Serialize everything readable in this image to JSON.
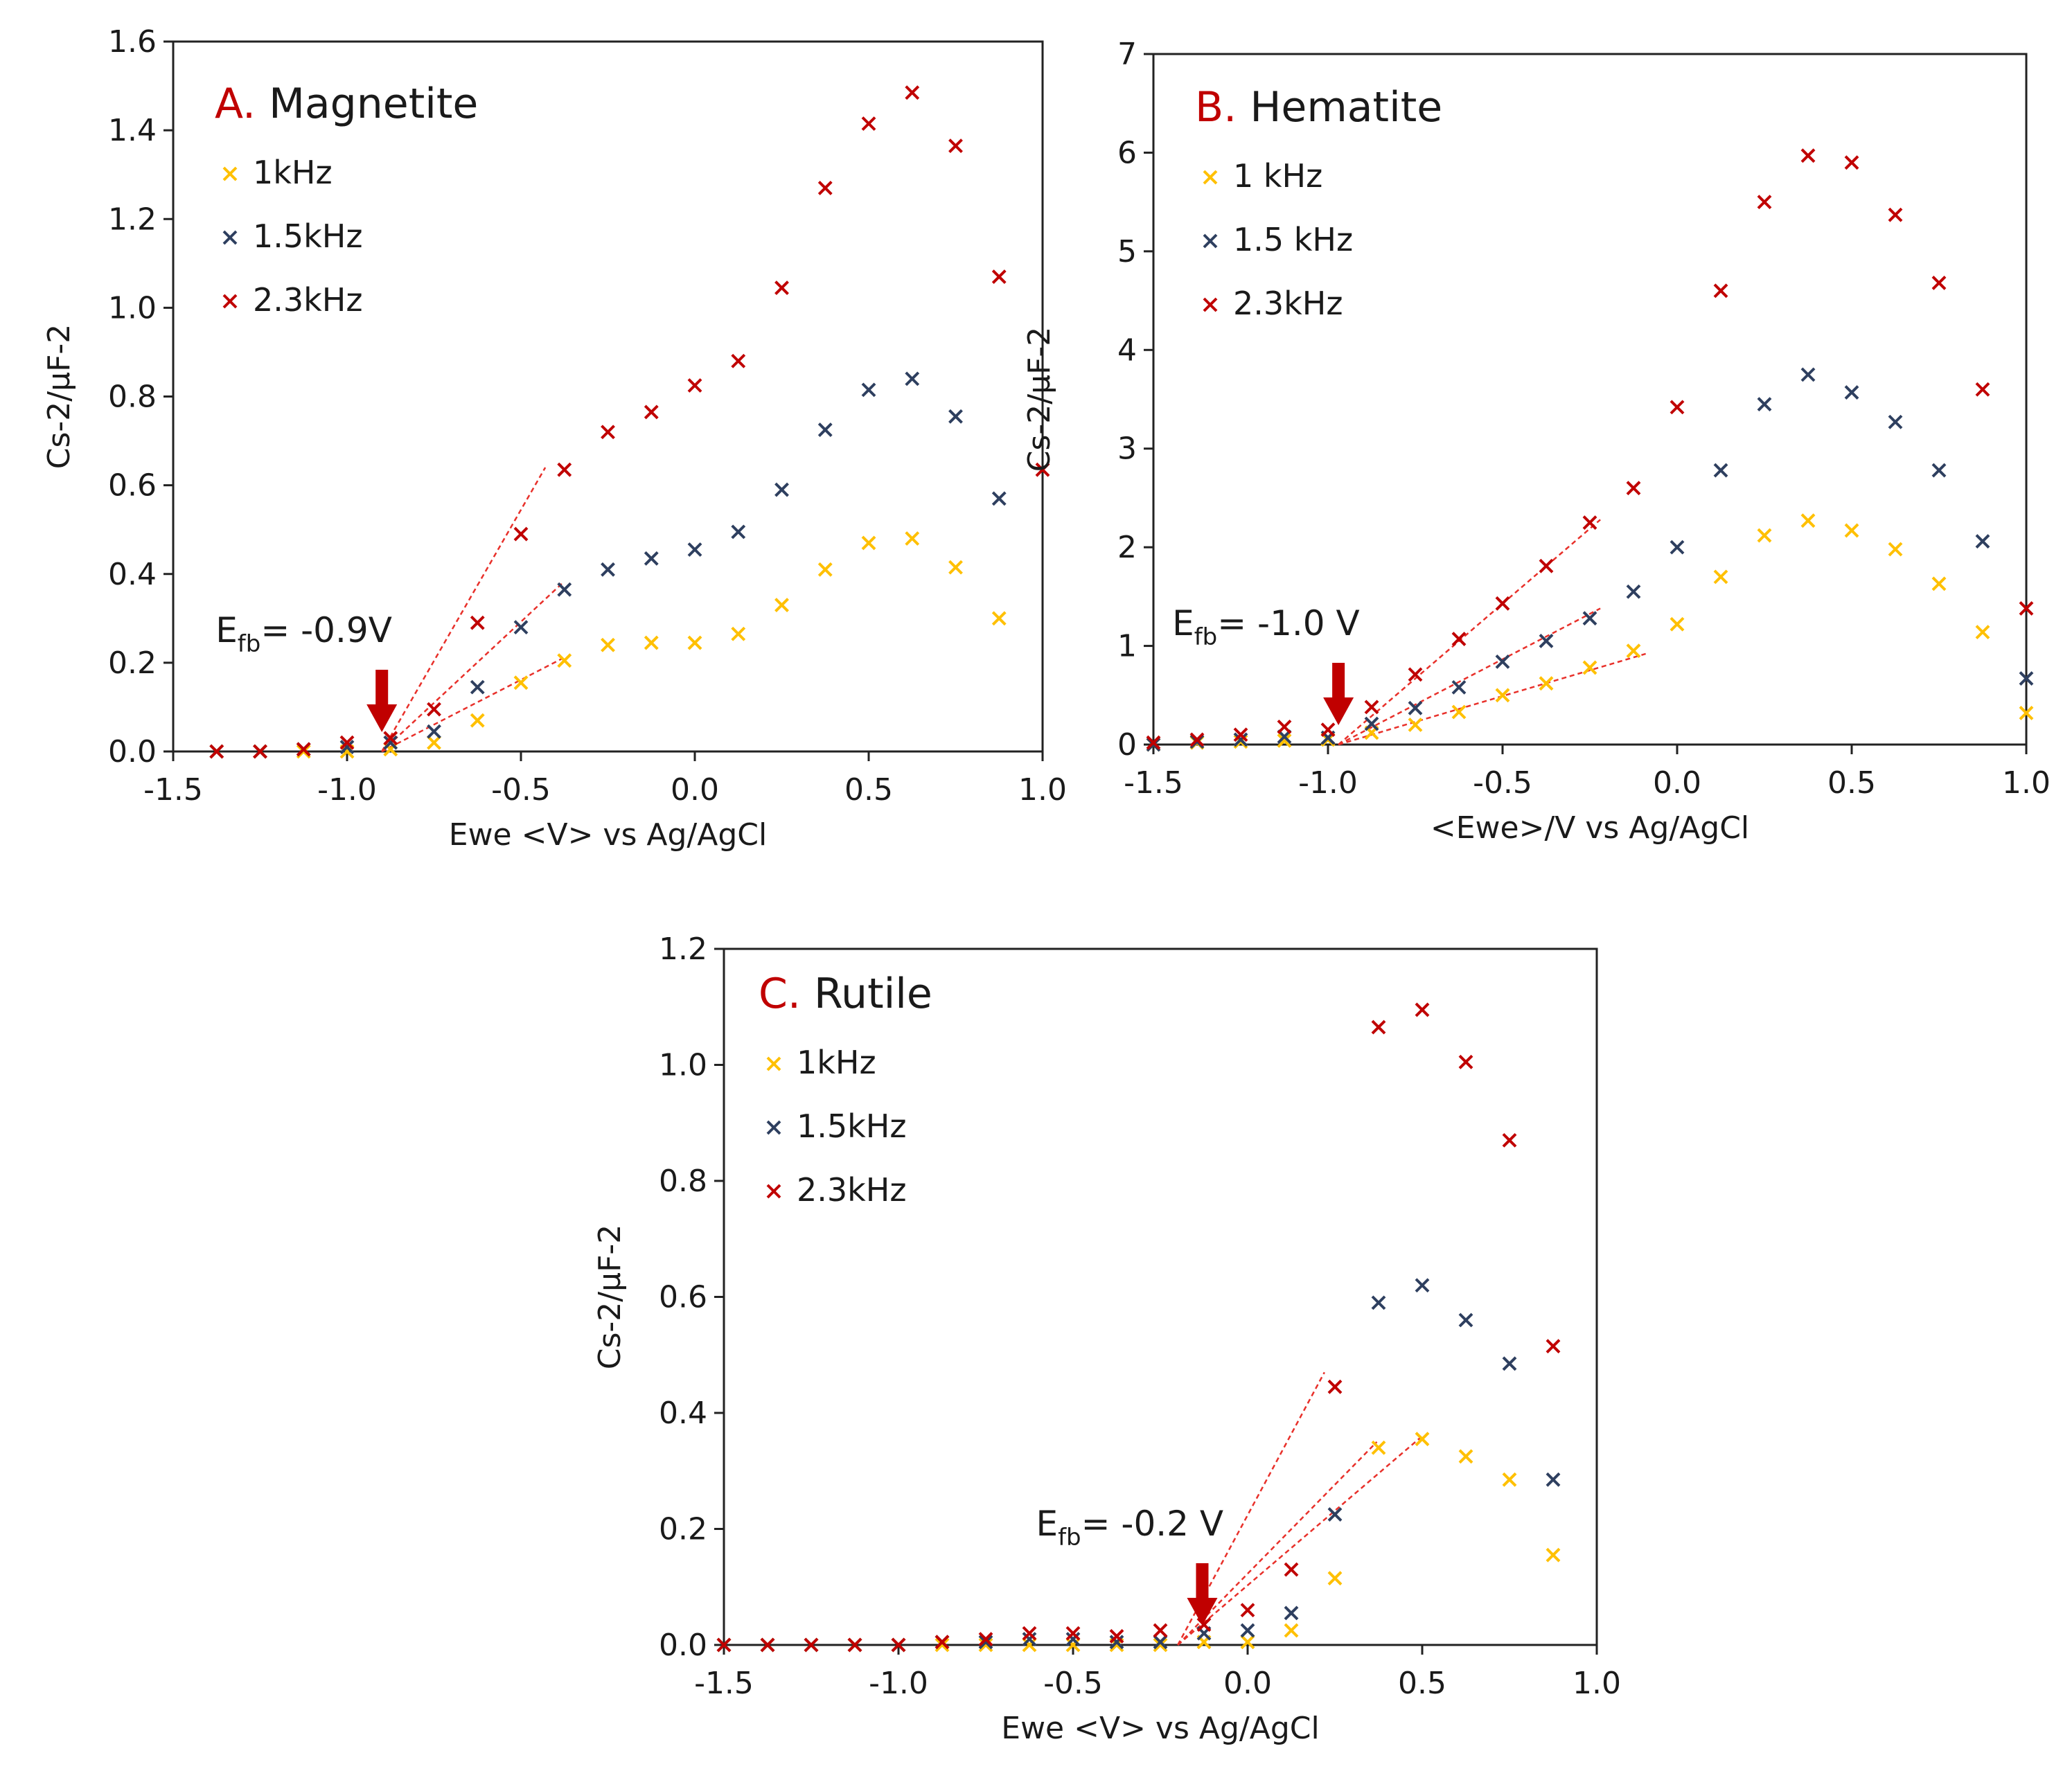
{
  "colors": {
    "s1": "#ffc000",
    "s2": "#2e3f5f",
    "s3": "#c00000",
    "arrow": "#c00000",
    "fit": "#e8302a",
    "axis": "#222222"
  },
  "chart_data": [
    {
      "type": "scatter",
      "panel_letter": "A.",
      "panel_name": "Magnetite",
      "xlabel": "Ewe <V> vs Ag/AgCl",
      "ylabel": "Cs-2/µF-2",
      "xlim": [
        -1.5,
        1.0
      ],
      "ylim": [
        0,
        1.6
      ],
      "xticks": [
        -1.5,
        -1.0,
        -0.5,
        0.0,
        0.5,
        1.0
      ],
      "xtick_labels": [
        "-1.5",
        "-1.0",
        "-0.5",
        "0.0",
        "0.5",
        "1.0"
      ],
      "yticks": [
        0,
        0.2,
        0.4,
        0.6,
        0.8,
        1.0,
        1.2,
        1.4,
        1.6
      ],
      "ytick_labels": [
        "0.0",
        "0.2",
        "0.4",
        "0.6",
        "0.8",
        "1.0",
        "1.2",
        "1.4",
        "1.6"
      ],
      "legend_position": "top-left",
      "annotation": {
        "efb_prefix": "E",
        "efb_sub": "fb",
        "efb_value": "= -0.9V",
        "arrow_x": -0.9
      },
      "series": [
        {
          "name": "1kHz",
          "x": [
            -1.375,
            -1.25,
            -1.125,
            -1.0,
            -0.875,
            -0.75,
            -0.625,
            -0.5,
            -0.375,
            -0.25,
            -0.125,
            0.0,
            0.125,
            0.25,
            0.375,
            0.5,
            0.625,
            0.75,
            0.875
          ],
          "y": [
            0,
            0,
            0,
            0,
            0.005,
            0.02,
            0.07,
            0.155,
            0.205,
            0.24,
            0.245,
            0.245,
            0.265,
            0.33,
            0.41,
            0.47,
            0.48,
            0.415,
            0.3
          ]
        },
        {
          "name": "1.5kHz",
          "x": [
            -1.375,
            -1.25,
            -1.125,
            -1.0,
            -0.875,
            -0.75,
            -0.625,
            -0.5,
            -0.375,
            -0.25,
            -0.125,
            0.0,
            0.125,
            0.25,
            0.375,
            0.5,
            0.625,
            0.75,
            0.875
          ],
          "y": [
            0,
            0,
            0.005,
            0.01,
            0.02,
            0.045,
            0.145,
            0.28,
            0.365,
            0.41,
            0.435,
            0.455,
            0.495,
            0.59,
            0.725,
            0.815,
            0.84,
            0.755,
            0.57
          ]
        },
        {
          "name": "2.3kHz",
          "x": [
            -1.375,
            -1.25,
            -1.125,
            -1.0,
            -0.875,
            -0.75,
            -0.625,
            -0.5,
            -0.375,
            -0.25,
            -0.125,
            0.0,
            0.125,
            0.25,
            0.375,
            0.5,
            0.625,
            0.75,
            0.875,
            1.0
          ],
          "y": [
            0,
            0,
            0.005,
            0.02,
            0.03,
            0.095,
            0.29,
            0.49,
            0.635,
            0.72,
            0.765,
            0.825,
            0.88,
            1.045,
            1.27,
            1.415,
            1.485,
            1.365,
            1.07,
            0.635
          ]
        }
      ],
      "fit_lines": [
        {
          "x": [
            -0.9,
            -0.38
          ],
          "y": [
            0.0,
            0.21
          ]
        },
        {
          "x": [
            -0.9,
            -0.38
          ],
          "y": [
            0.0,
            0.38
          ]
        },
        {
          "x": [
            -0.9,
            -0.43
          ],
          "y": [
            0.0,
            0.64
          ]
        }
      ]
    },
    {
      "type": "scatter",
      "panel_letter": "B.",
      "panel_name": "Hematite",
      "xlabel": "<Ewe>/V vs Ag/AgCl",
      "ylabel": "Cs-2/µF-2",
      "xlim": [
        -1.5,
        1.0
      ],
      "ylim": [
        0,
        7
      ],
      "xticks": [
        -1.5,
        -1.0,
        -0.5,
        0.0,
        0.5,
        1.0
      ],
      "xtick_labels": [
        "-1.5",
        "-1.0",
        "-0.5",
        "0.0",
        "0.5",
        "1.0"
      ],
      "yticks": [
        0,
        1,
        2,
        3,
        4,
        5,
        6,
        7
      ],
      "ytick_labels": [
        "0",
        "1",
        "2",
        "3",
        "4",
        "5",
        "6",
        "7"
      ],
      "legend_position": "top-left",
      "annotation": {
        "efb_prefix": "E",
        "efb_sub": "fb",
        "efb_value": "= -1.0 V",
        "arrow_x": -0.97
      },
      "series": [
        {
          "name": "1 kHz",
          "x": [
            -1.5,
            -1.375,
            -1.25,
            -1.125,
            -1.0,
            -0.875,
            -0.75,
            -0.625,
            -0.5,
            -0.375,
            -0.25,
            -0.125,
            0.0,
            0.125,
            0.25,
            0.375,
            0.5,
            0.625,
            0.75,
            0.875,
            1.0
          ],
          "y": [
            0,
            0.02,
            0.03,
            0.04,
            0.05,
            0.12,
            0.2,
            0.33,
            0.5,
            0.62,
            0.78,
            0.95,
            1.22,
            1.7,
            2.12,
            2.27,
            2.17,
            1.98,
            1.63,
            1.14,
            0.32
          ]
        },
        {
          "name": "1.5 kHz",
          "x": [
            -1.5,
            -1.375,
            -1.25,
            -1.125,
            -1.0,
            -0.875,
            -0.75,
            -0.625,
            -0.5,
            -0.375,
            -0.25,
            -0.125,
            0.0,
            0.125,
            0.25,
            0.375,
            0.5,
            0.625,
            0.75,
            0.875,
            1.0
          ],
          "y": [
            0,
            0.03,
            0.05,
            0.08,
            0.07,
            0.21,
            0.37,
            0.58,
            0.84,
            1.05,
            1.28,
            1.55,
            2.0,
            2.78,
            3.45,
            3.75,
            3.57,
            3.27,
            2.78,
            2.06,
            0.67
          ]
        },
        {
          "name": "2.3kHz",
          "x": [
            -1.5,
            -1.375,
            -1.25,
            -1.125,
            -1.0,
            -0.875,
            -0.75,
            -0.625,
            -0.5,
            -0.375,
            -0.25,
            -0.125,
            0.0,
            0.125,
            0.25,
            0.375,
            0.5,
            0.625,
            0.75,
            0.875,
            1.0
          ],
          "y": [
            0.02,
            0.05,
            0.1,
            0.18,
            0.15,
            0.38,
            0.71,
            1.07,
            1.43,
            1.81,
            2.25,
            2.6,
            3.42,
            4.6,
            5.5,
            5.97,
            5.9,
            5.37,
            4.68,
            3.6,
            1.38
          ]
        }
      ],
      "fit_lines": [
        {
          "x": [
            -0.97,
            -0.09
          ],
          "y": [
            0.0,
            0.92
          ]
        },
        {
          "x": [
            -0.97,
            -0.22
          ],
          "y": [
            0.0,
            1.38
          ]
        },
        {
          "x": [
            -0.97,
            -0.22
          ],
          "y": [
            0.0,
            2.28
          ]
        }
      ]
    },
    {
      "type": "scatter",
      "panel_letter": "C.",
      "panel_name": "Rutile",
      "xlabel": "Ewe <V> vs Ag/AgCl",
      "ylabel": "Cs-2/µF-2",
      "xlim": [
        -1.5,
        1.0
      ],
      "ylim": [
        0,
        1.2
      ],
      "xticks": [
        -1.5,
        -1.0,
        -0.5,
        0.0,
        0.5,
        1.0
      ],
      "xtick_labels": [
        "-1.5",
        "-1.0",
        "-0.5",
        "0.0",
        "0.5",
        "1.0"
      ],
      "yticks": [
        0,
        0.2,
        0.4,
        0.6,
        0.8,
        1.0,
        1.2
      ],
      "ytick_labels": [
        "0.0",
        "0.2",
        "0.4",
        "0.6",
        "0.8",
        "1.0",
        "1.2"
      ],
      "legend_position": "top-left",
      "annotation": {
        "efb_prefix": "E",
        "efb_sub": "fb",
        "efb_value": "= -0.2 V",
        "arrow_x": -0.13
      },
      "series": [
        {
          "name": "1kHz",
          "x": [
            -1.5,
            -1.375,
            -1.25,
            -1.125,
            -1.0,
            -0.875,
            -0.75,
            -0.625,
            -0.5,
            -0.375,
            -0.25,
            -0.125,
            0.0,
            0.125,
            0.25,
            0.375,
            0.5,
            0.625,
            0.75,
            0.875
          ],
          "y": [
            0,
            0,
            0,
            0,
            0,
            0,
            0,
            0,
            0,
            0,
            0,
            0.005,
            0.005,
            0.025,
            0.115,
            0.34,
            0.355,
            0.325,
            0.285,
            0.155
          ]
        },
        {
          "name": "1.5kHz",
          "x": [
            -1.5,
            -1.375,
            -1.25,
            -1.125,
            -1.0,
            -0.875,
            -0.75,
            -0.625,
            -0.5,
            -0.375,
            -0.25,
            -0.125,
            0.0,
            0.125,
            0.25,
            0.375,
            0.5,
            0.625,
            0.75,
            0.875
          ],
          "y": [
            0,
            0,
            0,
            0,
            0,
            0.005,
            0.005,
            0.01,
            0.01,
            0.005,
            0.005,
            0.02,
            0.025,
            0.055,
            0.225,
            0.59,
            0.62,
            0.56,
            0.485,
            0.285
          ]
        },
        {
          "name": "2.3kHz",
          "x": [
            -1.5,
            -1.375,
            -1.25,
            -1.125,
            -1.0,
            -0.875,
            -0.75,
            -0.625,
            -0.5,
            -0.375,
            -0.25,
            -0.125,
            0.0,
            0.125,
            0.25,
            0.375,
            0.5,
            0.625,
            0.75,
            0.875
          ],
          "y": [
            0,
            0,
            0,
            0,
            0,
            0.005,
            0.01,
            0.02,
            0.02,
            0.015,
            0.025,
            0.035,
            0.06,
            0.13,
            0.445,
            1.065,
            1.095,
            1.005,
            0.87,
            0.515
          ]
        }
      ],
      "fit_lines": [
        {
          "x": [
            -0.2,
            0.5
          ],
          "y": [
            0.0,
            0.36
          ]
        },
        {
          "x": [
            -0.2,
            0.37
          ],
          "y": [
            0.0,
            0.35
          ]
        },
        {
          "x": [
            -0.2,
            0.22
          ],
          "y": [
            0.0,
            0.47
          ]
        }
      ]
    }
  ]
}
